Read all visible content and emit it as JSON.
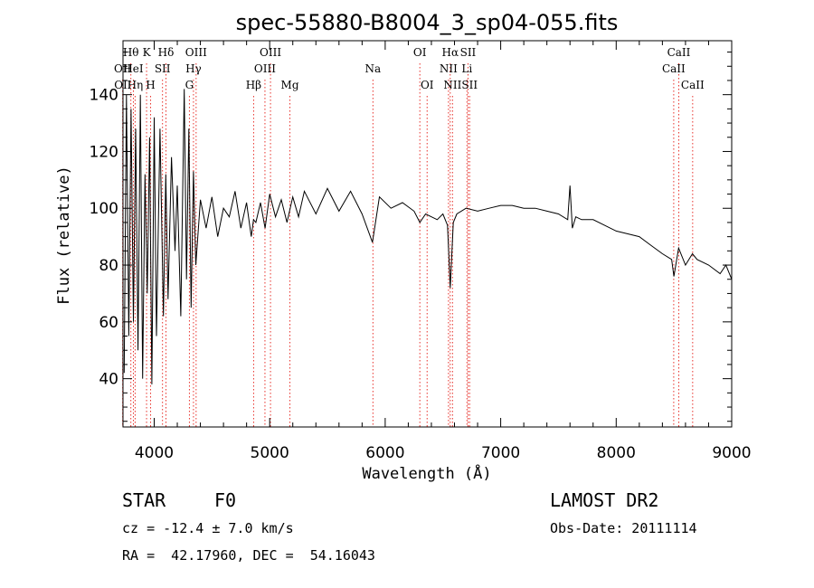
{
  "chart_data": {
    "type": "line",
    "title": "spec-55880-B8004_3_sp04-055.fits",
    "xlabel": "Wavelength (Å)",
    "ylabel": "Flux (relative)",
    "xlim": [
      3730,
      9000
    ],
    "ylim": [
      23,
      159
    ],
    "xticks": [
      4000,
      5000,
      6000,
      7000,
      8000,
      9000
    ],
    "yticks": [
      40,
      60,
      80,
      100,
      120,
      140
    ],
    "grid": false,
    "series": [
      {
        "x": [
          3740,
          3760,
          3780,
          3800,
          3820,
          3840,
          3860,
          3880,
          3900,
          3920,
          3940,
          3960,
          3980,
          4000,
          4020,
          4050,
          4080,
          4100,
          4120,
          4150,
          4180,
          4200,
          4230,
          4260,
          4280,
          4300,
          4320,
          4340,
          4360,
          4400,
          4450,
          4500,
          4550,
          4600,
          4650,
          4700,
          4750,
          4800,
          4840,
          4860,
          4880,
          4920,
          4960,
          5000,
          5050,
          5100,
          5150,
          5200,
          5250,
          5300,
          5400,
          5500,
          5600,
          5700,
          5800,
          5890,
          5950,
          6050,
          6150,
          6250,
          6300,
          6350,
          6400,
          6450,
          6500,
          6540,
          6563,
          6590,
          6620,
          6700,
          6800,
          6900,
          7000,
          7100,
          7200,
          7300,
          7400,
          7500,
          7580,
          7600,
          7620,
          7650,
          7700,
          7800,
          7900,
          8000,
          8100,
          8200,
          8300,
          8400,
          8480,
          8500,
          8540,
          8600,
          8660,
          8700,
          8800,
          8900,
          8950,
          9000
        ],
        "y": [
          42,
          140,
          55,
          135,
          60,
          128,
          50,
          140,
          40,
          112,
          70,
          125,
          38,
          132,
          55,
          128,
          62,
          112,
          68,
          118,
          85,
          108,
          62,
          142,
          75,
          128,
          65,
          113,
          80,
          103,
          93,
          104,
          90,
          100,
          97,
          106,
          93,
          102,
          90,
          96,
          95,
          102,
          93,
          105,
          97,
          103,
          95,
          104,
          97,
          106,
          98,
          107,
          99,
          106,
          98,
          88,
          104,
          100,
          102,
          99,
          95,
          98,
          97,
          96,
          98,
          94,
          72,
          95,
          98,
          100,
          99,
          100,
          101,
          101,
          100,
          100,
          99,
          98,
          96,
          108,
          93,
          97,
          96,
          96,
          94,
          92,
          91,
          90,
          87,
          84,
          82,
          76,
          86,
          80,
          84,
          82,
          80,
          77,
          80,
          75
        ]
      }
    ],
    "annotations": [
      {
        "label": "Hθ",
        "x": 3798,
        "row": 0
      },
      {
        "label": "OII",
        "x": 3727,
        "row": 1
      },
      {
        "label": "OII",
        "x": 3729,
        "row": 2
      },
      {
        "label": "HeI",
        "x": 3820,
        "row": 1
      },
      {
        "label": "Hη",
        "x": 3835,
        "row": 2
      },
      {
        "label": "K",
        "x": 3934,
        "row": 0
      },
      {
        "label": "SII",
        "x": 4072,
        "row": 1
      },
      {
        "label": "H",
        "x": 3969,
        "row": 2
      },
      {
        "label": "Hδ",
        "x": 4102,
        "row": 0
      },
      {
        "label": "OIII",
        "x": 4363,
        "row": 0
      },
      {
        "label": "Hγ",
        "x": 4340,
        "row": 1
      },
      {
        "label": "G",
        "x": 4305,
        "row": 2
      },
      {
        "label": "OIII",
        "x": 5007,
        "row": 0
      },
      {
        "label": "OIII",
        "x": 4959,
        "row": 1
      },
      {
        "label": "Hβ",
        "x": 4861,
        "row": 2
      },
      {
        "label": "Mg",
        "x": 5175,
        "row": 2
      },
      {
        "label": "Na",
        "x": 5894,
        "row": 1
      },
      {
        "label": "OI",
        "x": 6300,
        "row": 0
      },
      {
        "label": "OI",
        "x": 6363,
        "row": 2
      },
      {
        "label": "Hα",
        "x": 6563,
        "row": 0
      },
      {
        "label": "SII",
        "x": 6717,
        "row": 0
      },
      {
        "label": "NII",
        "x": 6548,
        "row": 1
      },
      {
        "label": "Li",
        "x": 6708,
        "row": 1
      },
      {
        "label": "NII",
        "x": 6583,
        "row": 2
      },
      {
        "label": "SII",
        "x": 6731,
        "row": 2
      },
      {
        "label": "CaII",
        "x": 8542,
        "row": 0
      },
      {
        "label": "CaII",
        "x": 8498,
        "row": 1
      },
      {
        "label": "CaII",
        "x": 8662,
        "row": 2
      }
    ]
  },
  "info": {
    "class_label": "STAR",
    "subclass": "F0",
    "survey": "LAMOST DR2",
    "redshift": "cz = -12.4 ± 7.0 km/s",
    "obs_date": "Obs-Date: 20111114",
    "coords": "RA =  42.17960, DEC =  54.16043"
  },
  "colors": {
    "axes": "#000000",
    "line_markers": "#e8312b",
    "spectrum": "#000000"
  }
}
